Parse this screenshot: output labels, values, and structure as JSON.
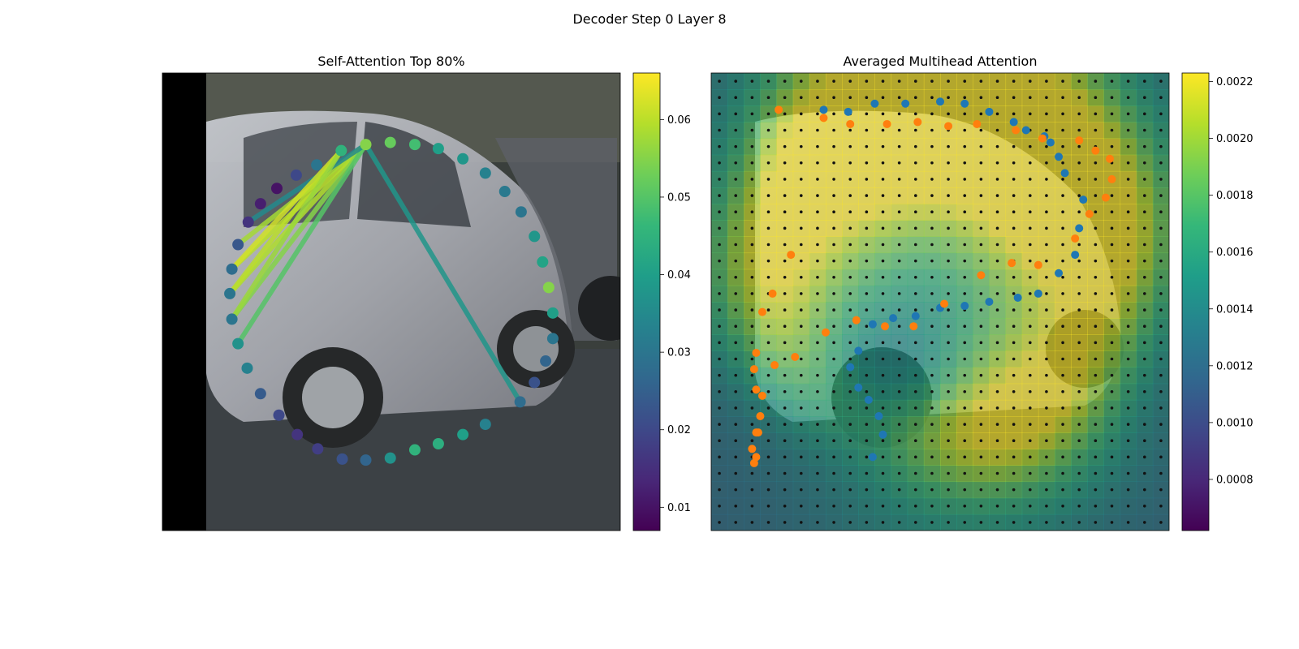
{
  "figure": {
    "suptitle": "Decoder Step 0 Layer 8"
  },
  "colors": {
    "viridis": [
      "#440154",
      "#482878",
      "#3e4989",
      "#31688e",
      "#26828e",
      "#1f9e89",
      "#35b779",
      "#6ece58",
      "#b5de2b",
      "#fde725"
    ],
    "blue_points": "#1f77b4",
    "orange_points": "#ff7f0e",
    "grid_dots": "#111111"
  },
  "chart_data": [
    {
      "type": "scatter",
      "title": "Self-Attention Top 80%",
      "image_extent": {
        "x": [
          0,
          224
        ],
        "y": [
          0,
          224
        ]
      },
      "points_x": [
        99.5,
        111.5,
        123.5,
        135.0,
        147.0,
        158.0,
        167.5,
        175.5,
        182.0,
        186.0,
        189.0,
        191.0,
        191.0,
        187.5,
        182.0,
        175.0,
        158.0,
        147.0,
        135.0,
        123.5,
        111.5,
        99.5,
        88.0,
        76.0,
        66.0,
        57.0,
        48.0,
        41.5,
        37.0,
        34.0,
        33.0,
        34.0,
        37.0,
        42.0,
        48.0,
        56.0,
        65.5,
        75.5,
        87.5
      ],
      "points_y": [
        189.0,
        190.0,
        189.0,
        187.0,
        182.0,
        175.0,
        166.0,
        156.0,
        144.0,
        131.5,
        119.0,
        106.5,
        94.0,
        83.0,
        72.5,
        63.0,
        52.0,
        47.0,
        42.5,
        39.5,
        35.5,
        34.5,
        35.0,
        40.0,
        47.0,
        56.5,
        67.0,
        79.5,
        91.5,
        103.5,
        116.0,
        128.0,
        140.0,
        151.0,
        160.0,
        167.5,
        174.0,
        179.0,
        186.0
      ],
      "point_values": [
        0.055,
        0.052,
        0.048,
        0.04,
        0.038,
        0.033,
        0.031,
        0.03,
        0.038,
        0.041,
        0.055,
        0.04,
        0.03,
        0.026,
        0.022,
        0.028,
        0.033,
        0.04,
        0.044,
        0.045,
        0.037,
        0.026,
        0.022,
        0.018,
        0.016,
        0.02,
        0.024,
        0.033,
        0.037,
        0.03,
        0.03,
        0.028,
        0.023,
        0.016,
        0.012,
        0.01,
        0.02,
        0.03,
        0.045
      ],
      "attention_edges": [
        {
          "from": 0,
          "to": 31,
          "value": 0.06
        },
        {
          "from": 0,
          "to": 30,
          "value": 0.059
        },
        {
          "from": 0,
          "to": 32,
          "value": 0.058
        },
        {
          "from": 0,
          "to": 29,
          "value": 0.055
        },
        {
          "from": 0,
          "to": 28,
          "value": 0.05
        },
        {
          "from": 0,
          "to": 33,
          "value": 0.035
        },
        {
          "from": 0,
          "to": 15,
          "value": 0.038
        },
        {
          "from": 38,
          "to": 31,
          "value": 0.062
        },
        {
          "from": 38,
          "to": 30,
          "value": 0.06
        },
        {
          "from": 38,
          "to": 29,
          "value": 0.057
        }
      ],
      "colorbar": {
        "range": [
          0.007,
          0.066
        ],
        "ticks": [
          0.01,
          0.02,
          0.03,
          0.04,
          0.05,
          0.06
        ],
        "tick_labels": [
          "0.01",
          "0.02",
          "0.03",
          "0.04",
          "0.05",
          "0.06"
        ]
      }
    },
    {
      "type": "heatmap",
      "title": "Averaged Multihead Attention",
      "image_extent": {
        "x": [
          0,
          224
        ],
        "y": [
          0,
          224
        ]
      },
      "heat_grid_size": 28,
      "heat_peaks": [
        {
          "x": 75,
          "y": 200,
          "amp": 0.0011
        },
        {
          "x": 145,
          "y": 205,
          "amp": 0.001
        },
        {
          "x": 180,
          "y": 150,
          "amp": 0.0009
        },
        {
          "x": 40,
          "y": 130,
          "amp": 0.0006
        },
        {
          "x": 150,
          "y": 60,
          "amp": 0.0007
        },
        {
          "x": 95,
          "y": 40,
          "amp": 0.0004
        }
      ],
      "heat_base": 0.0012,
      "orange_points_x": [
        33,
        55,
        68,
        86,
        101,
        116,
        130,
        149,
        162,
        180,
        188,
        195,
        196,
        193,
        185,
        178,
        160,
        147,
        132,
        114,
        99,
        85,
        71,
        56,
        41,
        31,
        25,
        22,
        20,
        21,
        22,
        23,
        24,
        22,
        21,
        22,
        25,
        30,
        39
      ],
      "orange_points_y": [
        206,
        202,
        199,
        199,
        200,
        198,
        199,
        196,
        192,
        191,
        186,
        182,
        172,
        163,
        155,
        143,
        130,
        131,
        125,
        111,
        100,
        100,
        103,
        97,
        85,
        81,
        66,
        48,
        40,
        33,
        36,
        48,
        56,
        69,
        79,
        87,
        107,
        116,
        135
      ],
      "blue_points_x": [
        55,
        67,
        80,
        95,
        112,
        124,
        136,
        148,
        154,
        163,
        166,
        170,
        173,
        182,
        180,
        178,
        170,
        160,
        150,
        136,
        124,
        112,
        100,
        89,
        79,
        72,
        68,
        72,
        77,
        82,
        84,
        79
      ],
      "blue_points_y": [
        206,
        205,
        209,
        209,
        210,
        209,
        205,
        200,
        196,
        193,
        190,
        183,
        175,
        162,
        148,
        135,
        126,
        116,
        114,
        112,
        110,
        109,
        105,
        104,
        101,
        88,
        80,
        70,
        64,
        56,
        47,
        36
      ],
      "colorbar": {
        "range": [
          0.00062,
          0.00223
        ],
        "ticks": [
          0.0008,
          0.001,
          0.0012,
          0.0014,
          0.0016,
          0.0018,
          0.002,
          0.0022
        ],
        "tick_labels": [
          "0.0008",
          "0.0010",
          "0.0012",
          "0.0014",
          "0.0016",
          "0.0018",
          "0.0020",
          "0.0022"
        ]
      }
    }
  ]
}
